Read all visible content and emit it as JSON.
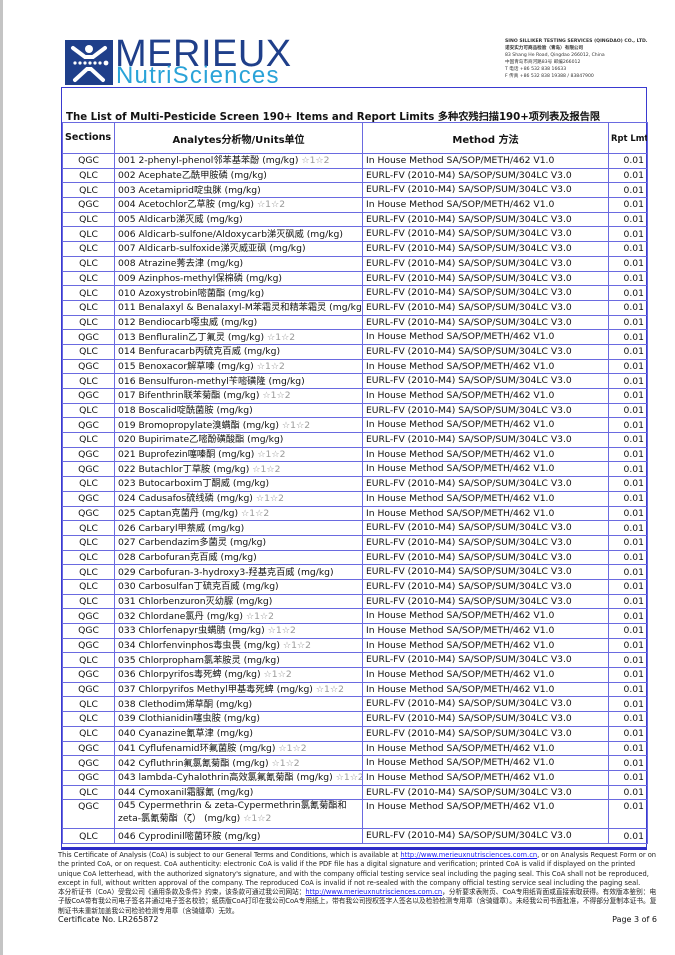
{
  "logo": {
    "main": "MERIEUX",
    "sub": "NutriSciences",
    "brand_color": "#1f3f8a",
    "accent_color": "#2aa3d8"
  },
  "company": {
    "name_en": "SINO SILLIKER TESTING SERVICES (QINGDAO) CO., LTD.",
    "name_cn": "诺安实力可商品检验（青岛）有限公司",
    "address_en": "83 Shang He Road, Qingdao 266012, China",
    "address_cn": "中国青岛市商河路83号 邮编266012",
    "tel": "T 电话 +86 532 838 16633",
    "fax": "F 传真 +86 532 838 19388 / 83847900"
  },
  "title": "The List of Multi-Pesticide Screen 190+ Items  and Report Limits  多种农残扫描190+项列表及报告限",
  "headers": {
    "sections": "Sections 部门",
    "analytes": "Analytes分析物/Units单位",
    "method": "Method 方法",
    "rpt": "Rpt Lmt 报告限"
  },
  "rows": [
    {
      "section": "QGC",
      "analyte": "001 2-phenyl-phenol邻苯基苯酚 (mg/kg)",
      "note": "☆1☆2",
      "method": "In House Method SA/SOP/METH/462 V1.0",
      "limit": "0.01"
    },
    {
      "section": "QLC",
      "analyte": "002 Acephate乙酰甲胺磷 (mg/kg)",
      "note": "",
      "method": "EURL-FV (2010-M4) SA/SOP/SUM/304LC V3.0",
      "limit": "0.01"
    },
    {
      "section": "QLC",
      "analyte": "003 Acetamiprid啶虫脒 (mg/kg)",
      "note": "",
      "method": "EURL-FV (2010-M4) SA/SOP/SUM/304LC V3.0",
      "limit": "0.01"
    },
    {
      "section": "QGC",
      "analyte": "004 Acetochlor乙草胺 (mg/kg)",
      "note": "☆1☆2",
      "method": "In House Method SA/SOP/METH/462 V1.0",
      "limit": "0.01"
    },
    {
      "section": "QLC",
      "analyte": "005 Aldicarb涕灭威 (mg/kg)",
      "note": "",
      "method": "EURL-FV (2010-M4) SA/SOP/SUM/304LC V3.0",
      "limit": "0.01"
    },
    {
      "section": "QLC",
      "analyte": "006 Aldicarb-sulfone/Aldoxycarb涕灭砜威 (mg/kg)",
      "note": "",
      "method": "EURL-FV (2010-M4) SA/SOP/SUM/304LC V3.0",
      "limit": "0.01"
    },
    {
      "section": "QLC",
      "analyte": "007 Aldicarb-sulfoxide涕灭威亚砜 (mg/kg)",
      "note": "",
      "method": "EURL-FV (2010-M4) SA/SOP/SUM/304LC V3.0",
      "limit": "0.01"
    },
    {
      "section": "QLC",
      "analyte": "008 Atrazine莠去津 (mg/kg)",
      "note": "",
      "method": "EURL-FV (2010-M4) SA/SOP/SUM/304LC V3.0",
      "limit": "0.01"
    },
    {
      "section": "QLC",
      "analyte": "009 Azinphos-methyl保棉磷 (mg/kg)",
      "note": "",
      "method": "EURL-FV (2010-M4) SA/SOP/SUM/304LC V3.0",
      "limit": "0.01"
    },
    {
      "section": "QLC",
      "analyte": "010 Azoxystrobin嘧菌酯 (mg/kg)",
      "note": "",
      "method": "EURL-FV (2010-M4) SA/SOP/SUM/304LC V3.0",
      "limit": "0.01"
    },
    {
      "section": "QLC",
      "analyte": "011 Benalaxyl & Benalaxyl-M苯霜灵和精苯霜灵 (mg/kg)",
      "note": "",
      "method": "EURL-FV (2010-M4) SA/SOP/SUM/304LC V3.0",
      "limit": "0.01"
    },
    {
      "section": "QLC",
      "analyte": "012 Bendiocarb噁虫威 (mg/kg)",
      "note": "",
      "method": "EURL-FV (2010-M4) SA/SOP/SUM/304LC V3.0",
      "limit": "0.01"
    },
    {
      "section": "QGC",
      "analyte": "013 Benfluralin乙丁氟灵 (mg/kg)",
      "note": "☆1☆2",
      "method": "In House Method SA/SOP/METH/462 V1.0",
      "limit": "0.01"
    },
    {
      "section": "QLC",
      "analyte": "014 Benfuracarb丙硫克百威 (mg/kg)",
      "note": "",
      "method": "EURL-FV (2010-M4) SA/SOP/SUM/304LC V3.0",
      "limit": "0.01"
    },
    {
      "section": "QGC",
      "analyte": "015 Benoxacor解草嗪 (mg/kg)",
      "note": "☆1☆2",
      "method": "In House Method SA/SOP/METH/462 V1.0",
      "limit": "0.01"
    },
    {
      "section": "QLC",
      "analyte": "016 Bensulfuron-methyl苄嘧磺隆 (mg/kg)",
      "note": "",
      "method": "EURL-FV (2010-M4) SA/SOP/SUM/304LC V3.0",
      "limit": "0.01"
    },
    {
      "section": "QGC",
      "analyte": "017 Bifenthrin联苯菊酯 (mg/kg)",
      "note": "☆1☆2",
      "method": "In House Method SA/SOP/METH/462 V1.0",
      "limit": "0.01"
    },
    {
      "section": "QLC",
      "analyte": "018 Boscalid啶酰菌胺 (mg/kg)",
      "note": "",
      "method": "EURL-FV (2010-M4) SA/SOP/SUM/304LC V3.0",
      "limit": "0.01"
    },
    {
      "section": "QGC",
      "analyte": "019 Bromopropylate溴螨酯 (mg/kg)",
      "note": "☆1☆2",
      "method": "In House Method SA/SOP/METH/462 V1.0",
      "limit": "0.01"
    },
    {
      "section": "QLC",
      "analyte": "020 Bupirimate乙嘧酚磺酸酯 (mg/kg)",
      "note": "",
      "method": "EURL-FV (2010-M4) SA/SOP/SUM/304LC V3.0",
      "limit": "0.01"
    },
    {
      "section": "QGC",
      "analyte": "021 Buprofezin噻嗪酮 (mg/kg)",
      "note": "☆1☆2",
      "method": "In House Method SA/SOP/METH/462 V1.0",
      "limit": "0.01"
    },
    {
      "section": "QGC",
      "analyte": "022 Butachlor丁草胺 (mg/kg)",
      "note": "☆1☆2",
      "method": "In House Method SA/SOP/METH/462 V1.0",
      "limit": "0.01"
    },
    {
      "section": "QLC",
      "analyte": "023 Butocarboxim丁酮威 (mg/kg)",
      "note": "",
      "method": "EURL-FV (2010-M4) SA/SOP/SUM/304LC V3.0",
      "limit": "0.01"
    },
    {
      "section": "QGC",
      "analyte": "024 Cadusafos硫线磷 (mg/kg)",
      "note": "☆1☆2",
      "method": "In House Method SA/SOP/METH/462 V1.0",
      "limit": "0.01"
    },
    {
      "section": "QGC",
      "analyte": "025 Captan克菌丹 (mg/kg)",
      "note": "☆1☆2",
      "method": "In House Method SA/SOP/METH/462 V1.0",
      "limit": "0.01"
    },
    {
      "section": "QLC",
      "analyte": "026 Carbaryl甲萘威 (mg/kg)",
      "note": "",
      "method": "EURL-FV (2010-M4) SA/SOP/SUM/304LC V3.0",
      "limit": "0.01"
    },
    {
      "section": "QLC",
      "analyte": "027 Carbendazim多菌灵 (mg/kg)",
      "note": "",
      "method": "EURL-FV (2010-M4) SA/SOP/SUM/304LC V3.0",
      "limit": "0.01"
    },
    {
      "section": "QLC",
      "analyte": "028 Carbofuran克百威 (mg/kg)",
      "note": "",
      "method": "EURL-FV (2010-M4) SA/SOP/SUM/304LC V3.0",
      "limit": "0.01"
    },
    {
      "section": "QLC",
      "analyte": "029 Carbofuran-3-hydroxy3-羟基克百威 (mg/kg)",
      "note": "",
      "method": "EURL-FV (2010-M4) SA/SOP/SUM/304LC V3.0",
      "limit": "0.01"
    },
    {
      "section": "QLC",
      "analyte": "030 Carbosulfan丁硫克百威 (mg/kg)",
      "note": "",
      "method": "EURL-FV (2010-M4) SA/SOP/SUM/304LC V3.0",
      "limit": "0.01"
    },
    {
      "section": "QLC",
      "analyte": "031 Chlorbenzuron灭幼脲 (mg/kg)",
      "note": "",
      "method": "EURL-FV (2010-M4) SA/SOP/SUM/304LC V3.0",
      "limit": "0.01"
    },
    {
      "section": "QGC",
      "analyte": "032 Chlordane氯丹 (mg/kg)",
      "note": "☆1☆2",
      "method": "In House Method SA/SOP/METH/462 V1.0",
      "limit": "0.01"
    },
    {
      "section": "QGC",
      "analyte": "033 Chlorfenapyr虫螨腈 (mg/kg)",
      "note": "☆1☆2",
      "method": "In House Method SA/SOP/METH/462 V1.0",
      "limit": "0.01"
    },
    {
      "section": "QGC",
      "analyte": "034 Chlorfenvinphos毒虫畏 (mg/kg)",
      "note": "☆1☆2",
      "method": "In House Method SA/SOP/METH/462 V1.0",
      "limit": "0.01"
    },
    {
      "section": "QLC",
      "analyte": "035 Chlorpropham氯苯胺灵 (mg/kg)",
      "note": "",
      "method": "EURL-FV (2010-M4) SA/SOP/SUM/304LC V3.0",
      "limit": "0.01"
    },
    {
      "section": "QGC",
      "analyte": "036 Chlorpyrifos毒死蜱 (mg/kg)",
      "note": "☆1☆2",
      "method": "In House Method SA/SOP/METH/462 V1.0",
      "limit": "0.01"
    },
    {
      "section": "QGC",
      "analyte": "037 Chlorpyrifos Methyl甲基毒死蜱 (mg/kg)",
      "note": "☆1☆2",
      "method": "In House Method SA/SOP/METH/462 V1.0",
      "limit": "0.01"
    },
    {
      "section": "QLC",
      "analyte": "038 Clethodim烯草酮 (mg/kg)",
      "note": "",
      "method": "EURL-FV (2010-M4) SA/SOP/SUM/304LC V3.0",
      "limit": "0.01"
    },
    {
      "section": "QLC",
      "analyte": "039 Clothianidin噻虫胺 (mg/kg)",
      "note": "",
      "method": "EURL-FV (2010-M4) SA/SOP/SUM/304LC V3.0",
      "limit": "0.01"
    },
    {
      "section": "QLC",
      "analyte": "040 Cyanazine氰草津 (mg/kg)",
      "note": "",
      "method": "EURL-FV (2010-M4) SA/SOP/SUM/304LC V3.0",
      "limit": "0.01"
    },
    {
      "section": "QGC",
      "analyte": "041 Cyflufenamid环氟菌胺 (mg/kg)",
      "note": "☆1☆2",
      "method": "In House Method SA/SOP/METH/462 V1.0",
      "limit": "0.01"
    },
    {
      "section": "QGC",
      "analyte": "042 Cyfluthrin氟氯氰菊酯 (mg/kg)",
      "note": "☆1☆2",
      "method": "In House Method SA/SOP/METH/462 V1.0",
      "limit": "0.01"
    },
    {
      "section": "QGC",
      "analyte": "043 lambda-Cyhalothrin高效氯氟氰菊酯 (mg/kg)",
      "note": "☆1☆2",
      "method": "In House Method SA/SOP/METH/462 V1.0",
      "limit": "0.01"
    },
    {
      "section": "QLC",
      "analyte": "044 Cymoxanil霜脲氰 (mg/kg)",
      "note": "",
      "method": "EURL-FV (2010-M4) SA/SOP/SUM/304LC V3.0",
      "limit": "0.01"
    },
    {
      "section": "QGC",
      "analyte": "045 Cypermethrin & zeta-Cypermethrin氯氰菊酯和zeta-氯氰菊酯（ζ） (mg/kg)",
      "note": "☆1☆2",
      "method": "In House Method SA/SOP/METH/462 V1.0",
      "limit": "0.01",
      "wrap": true
    },
    {
      "section": "QLC",
      "analyte": "046 Cyprodinil嘧菌环胺 (mg/kg)",
      "note": "",
      "method": "EURL-FV (2010-M4) SA/SOP/SUM/304LC V3.0",
      "limit": "0.01"
    }
  ],
  "footer": {
    "en_1": "This Certificate of Analysis (CoA) is subject to our General Terms and Conditions, which is available at ",
    "link": "http://www.merieuxnutrisciences.com.cn",
    "en_2": ", or on Analysis Request Form or on the printed CoA, or on request. CoA authenticity: electronic CoA is valid if the PDF file has a digital signature and verification; printed CoA is valid if displayed on the printed unique CoA letterhead, with the authorized signatory's signature, and with the company official testing service seal including the paging seal. This CoA shall not be reproduced, except in full, without written approval of the company. The reproduced CoA is invalid if not re-sealed with the company official testing service seal including the paging seal.",
    "cn_1": "本分析证书（CoA）受我公司《通用条款及条件》约束，该条款可通过我公司网站：",
    "cn_2": "，分析要求表附页、CoA专用纸背面或直接索取获得。有效版本鉴别：电子版CoA带有我公司电子签名并通过电子签名校验；纸质版CoA打印在我公司CoA专用纸上，带有我公司授权签字人签名以及检验检测专用章（含骑缝章）。未经我公司书面批准，不得部分复制本证书。复制证书未重新加盖我公司检验检测专用章（含骑缝章）无效。",
    "certificate": "Certificate No. LR265872",
    "page": "Page 3 of 6"
  }
}
